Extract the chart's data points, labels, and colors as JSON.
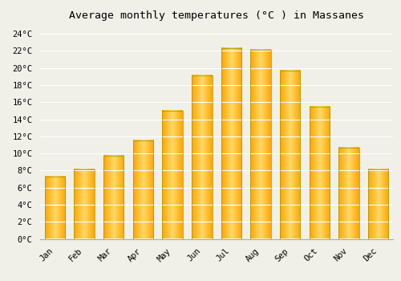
{
  "title": "Average monthly temperatures (°C ) in Massanes",
  "months": [
    "Jan",
    "Feb",
    "Mar",
    "Apr",
    "May",
    "Jun",
    "Jul",
    "Aug",
    "Sep",
    "Oct",
    "Nov",
    "Dec"
  ],
  "values": [
    7.3,
    8.1,
    9.7,
    11.5,
    15.0,
    19.1,
    22.3,
    22.1,
    19.7,
    15.5,
    10.7,
    8.1
  ],
  "bar_color_main": "#FFA500",
  "bar_color_light": "#FFD966",
  "bar_edge_color": "#888800",
  "background_color": "#f0f0e8",
  "grid_color": "#ffffff",
  "ylim": [
    0,
    25
  ],
  "ytick_step": 2,
  "title_fontsize": 9.5,
  "tick_fontsize": 7.5
}
